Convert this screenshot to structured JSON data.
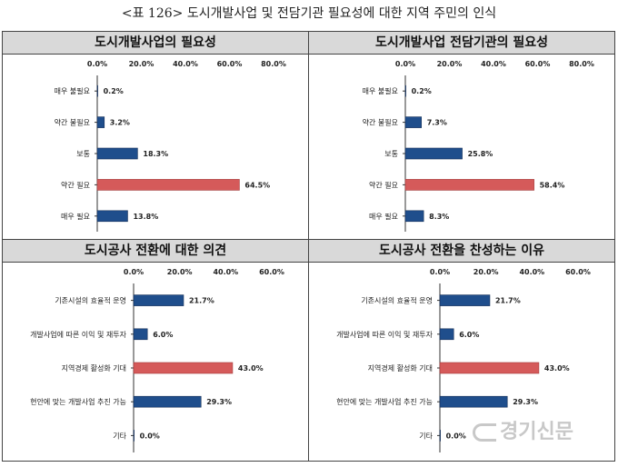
{
  "caption": "<표 126> 도시개발사업 및 전담기관 필요성에 대한 지역 주민의 인식",
  "colors": {
    "blue": "#1f4e8c",
    "red": "#d55a5a",
    "header": "#d9d9d9"
  },
  "watermark": {
    "icon": "gyeonggi-logo-icon",
    "text": "경기신문"
  },
  "chart_data": [
    {
      "type": "bar",
      "title": "도시개발사업의 필요성",
      "categories": [
        "매우 불필요",
        "약간 불필요",
        "보통",
        "약간 필요",
        "매우 필요"
      ],
      "values": [
        0.2,
        3.2,
        18.3,
        64.5,
        13.8
      ],
      "labels": [
        "0.2%",
        "3.2%",
        "18.3%",
        "64.5%",
        "13.8%"
      ],
      "highlight": [
        false,
        false,
        false,
        true,
        false
      ],
      "ticks": [
        "0.0%",
        "20.0%",
        "40.0%",
        "60.0%",
        "80.0%"
      ],
      "xlim": [
        0,
        80
      ]
    },
    {
      "type": "bar",
      "title": "도시개발사업 전담기관의 필요성",
      "categories": [
        "매우 불필요",
        "약간 불필요",
        "보통",
        "약간 필요",
        "매우 필요"
      ],
      "values": [
        0.2,
        7.3,
        25.8,
        58.4,
        8.3
      ],
      "labels": [
        "0.2%",
        "7.3%",
        "25.8%",
        "58.4%",
        "8.3%"
      ],
      "highlight": [
        false,
        false,
        false,
        true,
        false
      ],
      "ticks": [
        "0.0%",
        "20.0%",
        "40.0%",
        "60.0%",
        "80.0%"
      ],
      "xlim": [
        0,
        80
      ]
    },
    {
      "type": "bar",
      "title": "도시공사 전환에 대한 의견",
      "categories": [
        "기존시설의 효율적 운영",
        "개발사업에 따른 이익 및 재투자",
        "지역경제 활성화 기대",
        "현안에 맞는 개발사업 추진 가능",
        "기타"
      ],
      "values": [
        21.7,
        6.0,
        43.0,
        29.3,
        0.0
      ],
      "labels": [
        "21.7%",
        "6.0%",
        "43.0%",
        "29.3%",
        "0.0%"
      ],
      "highlight": [
        false,
        false,
        true,
        false,
        false
      ],
      "ticks": [
        "0.0%",
        "20.0%",
        "40.0%",
        "60.0%"
      ],
      "xlim": [
        0,
        60
      ]
    },
    {
      "type": "bar",
      "title": "도시공사 전환을 찬성하는 이유",
      "categories": [
        "기존시설의 효율적 운영",
        "개발사업에 따른 이익 및 재투자",
        "지역경제 활성화 기대",
        "현안에 맞는 개발사업 추진 가능",
        "기타"
      ],
      "values": [
        21.7,
        6.0,
        43.0,
        29.3,
        0.0
      ],
      "labels": [
        "21.7%",
        "6.0%",
        "43.0%",
        "29.3%",
        "0.0%"
      ],
      "highlight": [
        false,
        false,
        true,
        false,
        false
      ],
      "ticks": [
        "0.0%",
        "20.0%",
        "40.0%",
        "60.0%"
      ],
      "xlim": [
        0,
        60
      ]
    }
  ]
}
